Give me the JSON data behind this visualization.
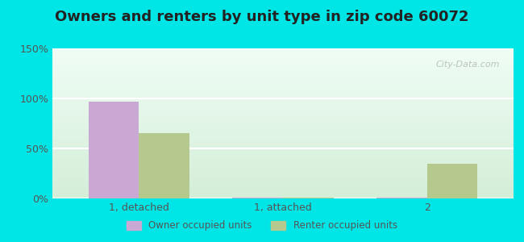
{
  "title": "Owners and renters by unit type in zip code 60072",
  "categories": [
    "1, detached",
    "1, attached",
    "2"
  ],
  "owner_values": [
    97,
    0.5,
    0.5
  ],
  "renter_values": [
    65,
    0.5,
    35
  ],
  "owner_color": "#c9a8d4",
  "renter_color": "#b5c98e",
  "outer_bg": "#00e5e5",
  "inner_bg_top": "#f0fdf5",
  "inner_bg_bottom": "#d4eed8",
  "ylim": [
    0,
    150
  ],
  "yticks": [
    0,
    50,
    100,
    150
  ],
  "yticklabels": [
    "0%",
    "50%",
    "100%",
    "150%"
  ],
  "legend_labels": [
    "Owner occupied units",
    "Renter occupied units"
  ],
  "bar_width": 0.35,
  "title_fontsize": 13,
  "watermark": "City-Data.com"
}
